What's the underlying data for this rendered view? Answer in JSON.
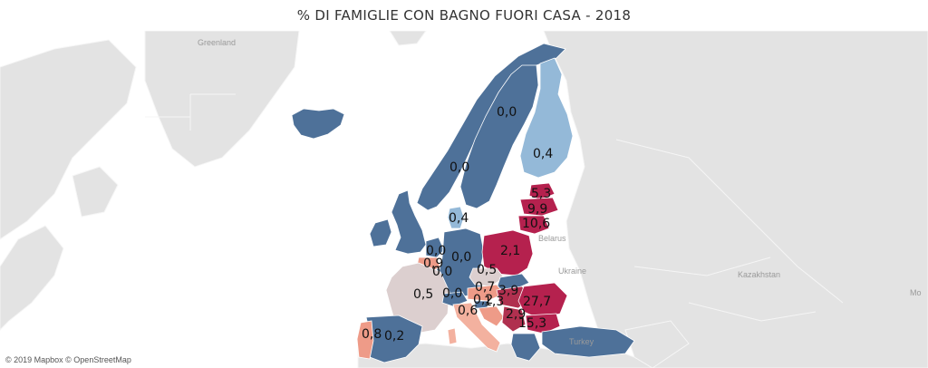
{
  "title": "% DI FAMIGLIE CON BAGNO FUORI CASA - 2018",
  "attribution": "© 2019 Mapbox © OpenStreetMap",
  "colors": {
    "ocean": "#ffffff",
    "land": "#e3e3e3",
    "border": "#f7f7f7",
    "dark_blue": "#4e7199",
    "light_blue": "#94b9d8",
    "light_grey_pink": "#dccfcf",
    "salmon": "#ee9b88",
    "light_salmon": "#f3b19f",
    "crimson": "#b5214e",
    "magenta": "#b0304f"
  },
  "place_labels": {
    "greenland": "Greenland",
    "belarus": "Belarus",
    "ukraine": "Ukraine",
    "kazakhstan": "Kazakhstan",
    "turkey": "Turkey",
    "mongolia": "Mo"
  },
  "countries": [
    {
      "name": "Norvegia",
      "value": "0,0",
      "color": "#4e7199"
    },
    {
      "name": "Svezia",
      "value": "0,0",
      "color": "#4e7199"
    },
    {
      "name": "Finlandia",
      "value": "0,4",
      "color": "#94b9d8"
    },
    {
      "name": "Estonia",
      "value": "5,3",
      "color": "#b5214e"
    },
    {
      "name": "Lettonia",
      "value": "9,9",
      "color": "#b5214e"
    },
    {
      "name": "Lituania",
      "value": "10,6",
      "color": "#b5214e"
    },
    {
      "name": "Danimarca",
      "value": "0,4",
      "color": "#94b9d8"
    },
    {
      "name": "Polonia",
      "value": "2,1",
      "color": "#b5214e"
    },
    {
      "name": "Paesi Bassi",
      "value": "0,0",
      "color": "#4e7199"
    },
    {
      "name": "Belgio",
      "value": "0,9",
      "color": "#ee9b88"
    },
    {
      "name": "Lussemburgo",
      "value": "0,0",
      "color": "#4e7199"
    },
    {
      "name": "Germania",
      "value": "0,0",
      "color": "#4e7199"
    },
    {
      "name": "Cechia",
      "value": "0,5",
      "color": "#dccfcf"
    },
    {
      "name": "Francia",
      "value": "0,5",
      "color": "#dccfcf"
    },
    {
      "name": "Svizzera",
      "value": "0,0",
      "color": "#4e7199"
    },
    {
      "name": "Austria",
      "value": "0,7",
      "color": "#ee9b88"
    },
    {
      "name": "Slovenia",
      "value": "0,2",
      "color": "#4e7199"
    },
    {
      "name": "Croazia",
      "value": "1,3",
      "color": "#ee9b88"
    },
    {
      "name": "Ungheria",
      "value": "3,9",
      "color": "#b0304f"
    },
    {
      "name": "Romania",
      "value": "27,7",
      "color": "#b5214e"
    },
    {
      "name": "Serbia",
      "value": "2,9",
      "color": "#b0304f"
    },
    {
      "name": "Bulgaria",
      "value": "15,3",
      "color": "#b5214e"
    },
    {
      "name": "Italia",
      "value": "0,6",
      "color": "#f3b19f"
    },
    {
      "name": "Portogallo",
      "value": "0,8",
      "color": "#ee9b88"
    },
    {
      "name": "Spagna",
      "value": "0,2",
      "color": "#4e7199"
    },
    {
      "name": "Islanda",
      "value": "",
      "color": "#4e7199"
    },
    {
      "name": "Regno Unito",
      "value": "",
      "color": "#4e7199"
    },
    {
      "name": "Irlanda",
      "value": "",
      "color": "#4e7199"
    },
    {
      "name": "Slovacchia",
      "value": "",
      "color": "#4e7199"
    },
    {
      "name": "Grecia",
      "value": "",
      "color": "#4e7199"
    },
    {
      "name": "Turchia",
      "value": "",
      "color": "#4e7199"
    }
  ]
}
